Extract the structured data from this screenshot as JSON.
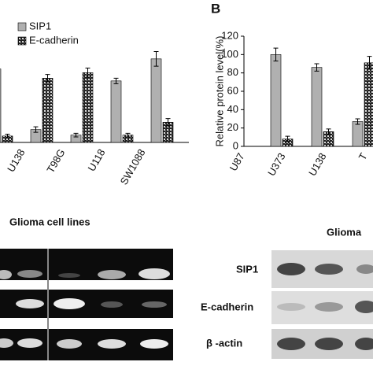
{
  "chart_data": [
    {
      "type": "bar",
      "categories": [
        null,
        "U138",
        "T98G",
        "U118",
        "SW1088"
      ],
      "series": [
        {
          "name": "SIP1",
          "color": "#b0b0b0",
          "values": [
            80,
            14,
            8,
            67,
            91
          ],
          "errors": [
            6,
            3,
            2,
            3,
            8
          ]
        },
        {
          "name": "E-cadherin",
          "color": "#222222",
          "hatch": true,
          "values": [
            7,
            70,
            76,
            8,
            22
          ],
          "errors": [
            2,
            4,
            5,
            2,
            4
          ]
        }
      ],
      "ylim": [
        0,
        120
      ],
      "legend": "top-left",
      "xlabel": "Glioma cell lines"
    },
    {
      "type": "bar",
      "panel": "B",
      "ylabel": "Relative protein level(%)",
      "categories": [
        "U87",
        "U373",
        "U138",
        "T"
      ],
      "series": [
        {
          "name": "SIP1",
          "color": "#b0b0b0",
          "values": [
            100,
            86,
            27,
            null
          ],
          "errors": [
            7,
            4,
            3,
            null
          ]
        },
        {
          "name": "E-cadherin",
          "color": "#222222",
          "hatch": true,
          "values": [
            8,
            16,
            91,
            null
          ],
          "errors": [
            3,
            3,
            7,
            null
          ]
        }
      ],
      "ylim": [
        0,
        120
      ],
      "yticks": [
        0,
        20,
        40,
        60,
        80,
        100,
        120
      ],
      "xlabel": "Glioma"
    }
  ],
  "blots": {
    "labels": [
      "SIP1",
      "E-cadherin",
      "β -actin"
    ]
  }
}
